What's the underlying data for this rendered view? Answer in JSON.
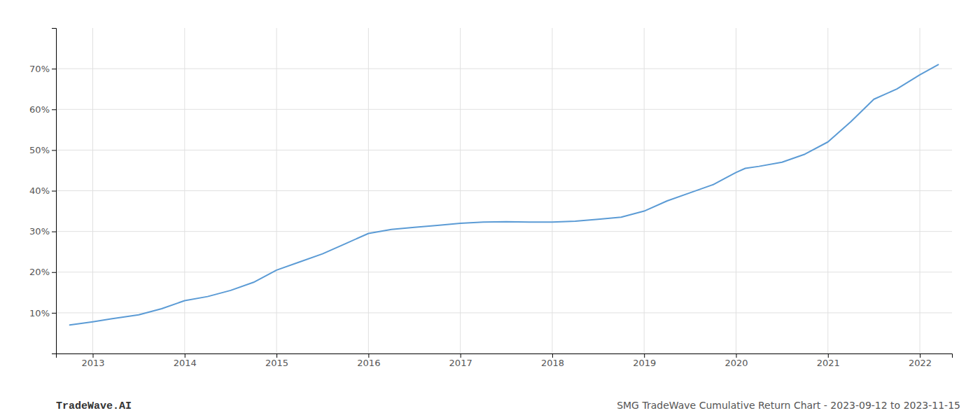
{
  "chart_data": {
    "type": "line",
    "x": [
      2012.75,
      2013.0,
      2013.2,
      2013.5,
      2013.75,
      2014.0,
      2014.25,
      2014.5,
      2014.75,
      2015.0,
      2015.25,
      2015.5,
      2015.75,
      2016.0,
      2016.25,
      2016.5,
      2016.75,
      2017.0,
      2017.25,
      2017.5,
      2017.75,
      2018.0,
      2018.25,
      2018.5,
      2018.75,
      2019.0,
      2019.25,
      2019.5,
      2019.75,
      2020.0,
      2020.1,
      2020.25,
      2020.5,
      2020.75,
      2021.0,
      2021.25,
      2021.5,
      2021.75,
      2022.0,
      2022.2
    ],
    "values": [
      7.0,
      7.8,
      8.5,
      9.5,
      11.0,
      13.0,
      14.0,
      15.5,
      17.5,
      20.5,
      22.5,
      24.5,
      27.0,
      29.5,
      30.5,
      31.0,
      31.5,
      32.0,
      32.3,
      32.4,
      32.3,
      32.3,
      32.5,
      33.0,
      33.5,
      35.0,
      37.5,
      39.5,
      41.5,
      44.5,
      45.5,
      46.0,
      47.0,
      49.0,
      52.0,
      57.0,
      62.5,
      65.0,
      68.5,
      71.0
    ],
    "color": "#5b9bd5",
    "xlim": [
      2012.6,
      2022.35
    ],
    "ylim": [
      0,
      80
    ],
    "xticks": [
      2013,
      2014,
      2015,
      2016,
      2017,
      2018,
      2019,
      2020,
      2021,
      2022
    ],
    "yticks": [
      {
        "value": 10,
        "label": "10%"
      },
      {
        "value": 20,
        "label": "20%"
      },
      {
        "value": 30,
        "label": "30%"
      },
      {
        "value": 40,
        "label": "40%"
      },
      {
        "value": 50,
        "label": "50%"
      },
      {
        "value": 60,
        "label": "60%"
      },
      {
        "value": 70,
        "label": "70%"
      }
    ],
    "grid": true,
    "annotations": [
      "TradeWave.AI",
      "SMG TradeWave Cumulative Return Chart - 2023-09-12 to 2023-11-15"
    ]
  }
}
